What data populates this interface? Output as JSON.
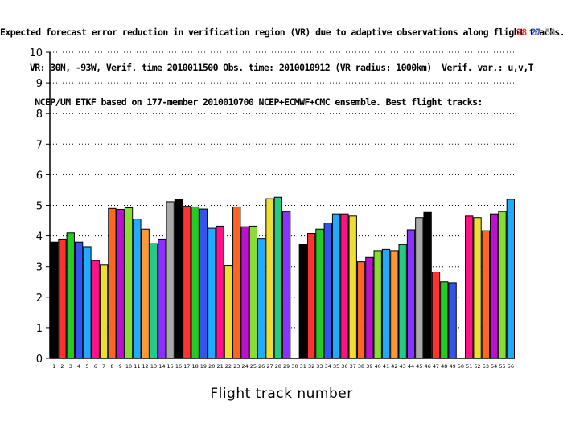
{
  "title_lines": [
    "Expected forecast error reduction in verification region (VR) due to adaptive observations along flight tracks.",
    "VR: 30N, -93W, Verif. time 2010011500 Obs. time: 2010010912 (VR radius: 1000km)  Verif. var.: u,v,T",
    "NCEP/UM ETKF based on 177-member 2010010700 NCEP+ECMWF+CMC ensemble. Best flight tracks:"
  ],
  "best_tracks": [
    {
      "label": "28",
      "color": "#ff3333"
    },
    {
      "label": "27",
      "color": "#3355ee"
    },
    {
      "label": "56",
      "color": "#999999"
    }
  ],
  "chart_data": {
    "type": "bar",
    "title": "Expected forecast error reduction in verification region (VR) due to adaptive observations along flight tracks.",
    "xlabel": "Flight track number",
    "ylabel": "",
    "ylim": [
      0,
      10
    ],
    "y_ticks": [
      "0",
      "1",
      "2",
      "3",
      "4",
      "5",
      "6",
      "7",
      "8",
      "9",
      "10"
    ],
    "grid": "horizontal dotted",
    "categories": [
      "1",
      "2",
      "3",
      "4",
      "5",
      "6",
      "7",
      "8",
      "9",
      "10",
      "11",
      "12",
      "13",
      "14",
      "15",
      "16",
      "17",
      "18",
      "19",
      "20",
      "21",
      "22",
      "23",
      "24",
      "25",
      "26",
      "27",
      "28",
      "29",
      "30",
      "31",
      "32",
      "33",
      "34",
      "35",
      "36",
      "37",
      "38",
      "39",
      "40",
      "41",
      "42",
      "43",
      "44",
      "45",
      "46",
      "47",
      "48",
      "49",
      "50",
      "51",
      "52",
      "53",
      "54",
      "55",
      "56"
    ],
    "values": [
      3.8,
      3.9,
      4.1,
      3.8,
      3.65,
      3.2,
      3.05,
      4.9,
      4.87,
      4.92,
      4.55,
      4.22,
      3.75,
      3.9,
      5.12,
      5.2,
      4.97,
      4.95,
      4.88,
      4.25,
      4.32,
      3.03,
      4.95,
      4.3,
      4.32,
      3.92,
      5.22,
      5.27,
      4.8,
      null,
      3.72,
      4.08,
      4.22,
      4.42,
      4.72,
      4.72,
      4.65,
      3.16,
      3.3,
      3.52,
      3.56,
      3.52,
      3.72,
      4.2,
      4.6,
      4.77,
      2.82,
      2.5,
      2.47,
      null,
      4.65,
      4.6,
      4.17,
      4.72,
      4.8,
      5.2
    ],
    "colors": [
      "#000000",
      "#ff3333",
      "#22cc22",
      "#3355ee",
      "#22aaff",
      "#ff1188",
      "#eedd33",
      "#ff6622",
      "#bb11cc",
      "#88dd33",
      "#22aaff",
      "#ff9933",
      "#22cc88",
      "#8833ff",
      "#aaaaaa",
      "#000000",
      "#ff3333",
      "#22cc22",
      "#3355ee",
      "#22aaff",
      "#ff1188",
      "#eedd33",
      "#ff6622",
      "#bb11cc",
      "#88dd33",
      "#22aaff",
      "#eedd33",
      "#22cc88",
      "#8833ff",
      "#aaaaaa",
      "#000000",
      "#ff3333",
      "#22cc22",
      "#3355ee",
      "#22aaff",
      "#ff1188",
      "#eedd33",
      "#ff6622",
      "#bb11cc",
      "#88dd33",
      "#22aaff",
      "#ff9933",
      "#22cc88",
      "#8833ff",
      "#aaaaaa",
      "#000000",
      "#ff3333",
      "#22cc22",
      "#3355ee",
      "#22aaff",
      "#ff1188",
      "#eedd33",
      "#ff6622",
      "#bb11cc",
      "#88dd33",
      "#22aaff"
    ]
  }
}
